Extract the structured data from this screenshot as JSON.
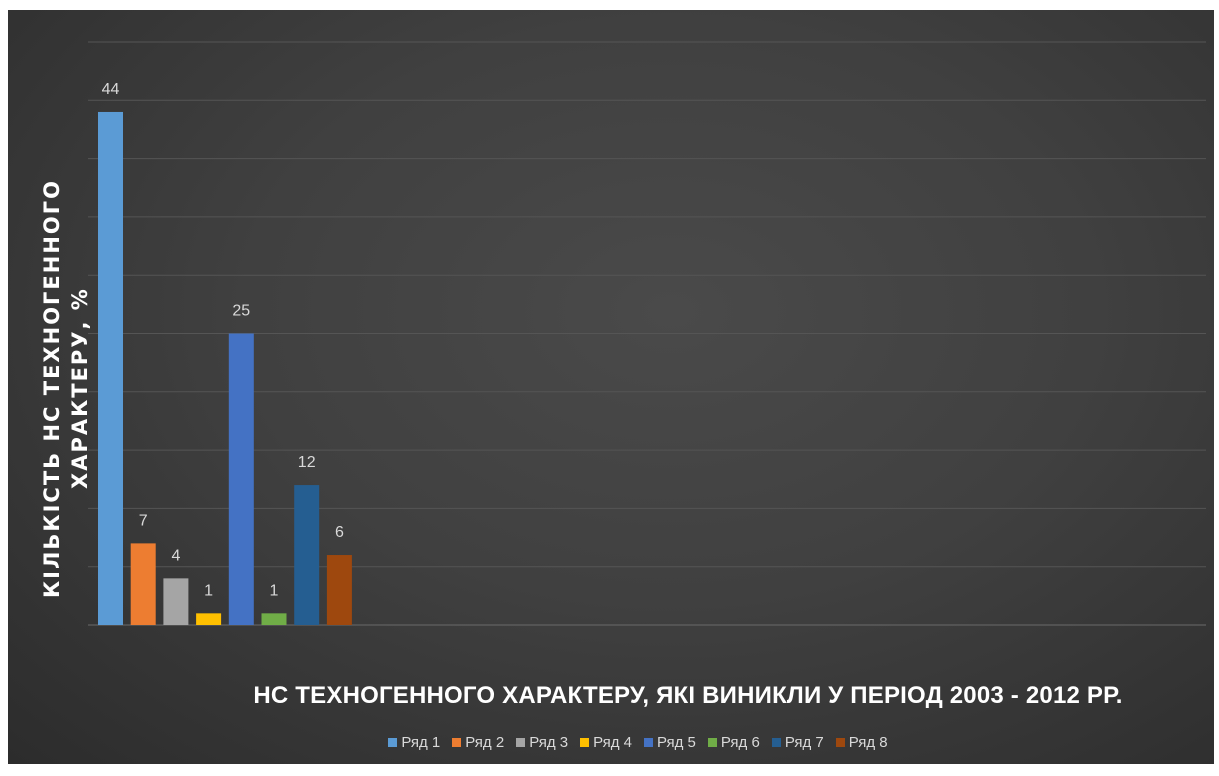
{
  "chart_data": {
    "type": "bar",
    "title": "НС ТЕХНОГЕННОГО ХАРАКТЕРУ, ЯКІ ВИНИКЛИ У  ПЕРІОД 2003 - 2012 РР.",
    "xlabel": "",
    "ylabel": "КІЛЬКІСТЬ НС ТЕХНОГЕННОГО ХАРАКТЕРУ, %",
    "ylim": [
      0,
      50
    ],
    "grid": true,
    "legend_position": "bottom",
    "series": [
      {
        "name": "Ряд 1",
        "values": [
          44
        ],
        "color": "#5b9bd5"
      },
      {
        "name": "Ряд 2",
        "values": [
          7
        ],
        "color": "#ed7d31"
      },
      {
        "name": "Ряд 3",
        "values": [
          4
        ],
        "color": "#a5a5a5"
      },
      {
        "name": "Ряд 4",
        "values": [
          1
        ],
        "color": "#ffc000"
      },
      {
        "name": "Ряд 5",
        "values": [
          25
        ],
        "color": "#4472c4"
      },
      {
        "name": "Ряд 6",
        "values": [
          1
        ],
        "color": "#70ad47"
      },
      {
        "name": "Ряд 7",
        "values": [
          12
        ],
        "color": "#255e91"
      },
      {
        "name": "Ряд 8",
        "values": [
          6
        ],
        "color": "#9e480e"
      }
    ]
  }
}
